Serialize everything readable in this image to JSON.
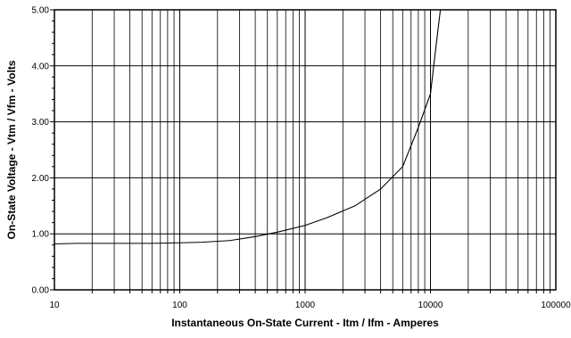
{
  "chart_data": {
    "type": "line",
    "title": "",
    "xlabel": "Instantaneous On-State Current  -  Itm / Ifm  -  Amperes",
    "ylabel": "On-State Voltage  -  Vtm / Vfm  -  Volts",
    "x_scale": "log",
    "xlim": [
      10,
      100000
    ],
    "ylim": [
      0,
      5
    ],
    "x_tick_labels": [
      "10",
      "100",
      "1000",
      "10000",
      "100000"
    ],
    "y_tick_labels": [
      "0.00",
      "1.00",
      "2.00",
      "3.00",
      "4.00",
      "5.00"
    ],
    "grid": true,
    "series": [
      {
        "x": [
          10,
          15,
          30,
          60,
          100,
          150,
          250,
          400,
          600,
          1000,
          1500,
          2500,
          4000,
          6000,
          8000,
          10000,
          11000,
          12000
        ],
        "y": [
          0.82,
          0.83,
          0.83,
          0.83,
          0.84,
          0.85,
          0.88,
          0.95,
          1.03,
          1.15,
          1.29,
          1.5,
          1.8,
          2.2,
          2.9,
          3.5,
          4.3,
          5.0
        ]
      }
    ]
  }
}
